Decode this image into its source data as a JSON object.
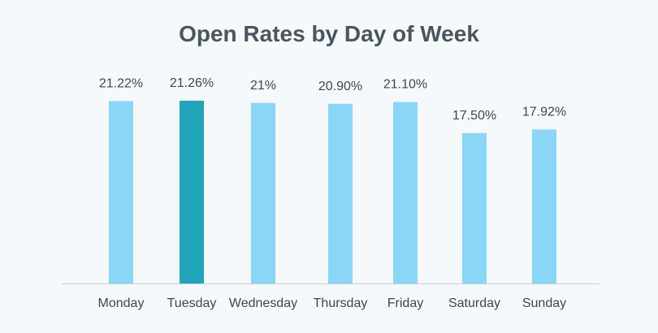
{
  "chart_data": {
    "type": "bar",
    "title": "Open Rates by Day of Week",
    "categories": [
      "Monday",
      "Tuesday",
      "Wednesday",
      "Thursday",
      "Friday",
      "Saturday",
      "Sunday"
    ],
    "values": [
      21.22,
      21.26,
      21,
      20.9,
      21.1,
      17.5,
      17.92
    ],
    "value_labels": [
      "21.22%",
      "21.26%",
      "21%",
      "20.90%",
      "21.10%",
      "17.50%",
      "17.92%"
    ],
    "unit": "%",
    "highlighted_category": "Tuesday",
    "ylim": [
      0,
      21.26
    ],
    "grid": false,
    "legend": "none",
    "colors": {
      "bar": "#8ad6f7",
      "highlight": "#20a5ba",
      "axis": "#c7cfd6",
      "text": "#3c4650",
      "title": "#4a5560",
      "background": "#f5f9fb"
    }
  }
}
